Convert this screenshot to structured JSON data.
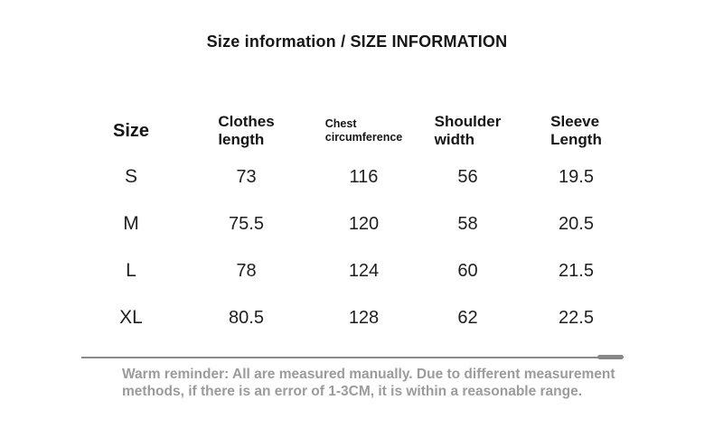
{
  "page": {
    "title": "Size information / SIZE INFORMATION"
  },
  "table": {
    "columns": [
      {
        "key": "size",
        "label": "Size"
      },
      {
        "key": "clothes_length",
        "label": "Clothes\nlength"
      },
      {
        "key": "chest_circumference",
        "label": "Chest\ncircumference"
      },
      {
        "key": "shoulder_width",
        "label": "Shoulder\nwidth"
      },
      {
        "key": "sleeve_length",
        "label": "Sleeve\nLength"
      }
    ],
    "rows": [
      {
        "size": "S",
        "clothes_length": "73",
        "chest_circumference": "116",
        "shoulder_width": "56",
        "sleeve_length": "19.5"
      },
      {
        "size": "M",
        "clothes_length": "75.5",
        "chest_circumference": "120",
        "shoulder_width": "58",
        "sleeve_length": "20.5"
      },
      {
        "size": "L",
        "clothes_length": "78",
        "chest_circumference": "124",
        "shoulder_width": "60",
        "sleeve_length": "21.5"
      },
      {
        "size": "XL",
        "clothes_length": "80.5",
        "chest_circumference": "128",
        "shoulder_width": "62",
        "sleeve_length": "22.5"
      }
    ]
  },
  "footer": {
    "reminder": "Warm reminder: All are measured manually. Due to different measurement\nmethods, if there is an error of 1-3CM, it is within a reasonable range."
  },
  "colors": {
    "text_primary": "#1e1e1e",
    "text_muted": "#9b9b9b",
    "divider": "#8a8a8a",
    "background": "#ffffff"
  }
}
